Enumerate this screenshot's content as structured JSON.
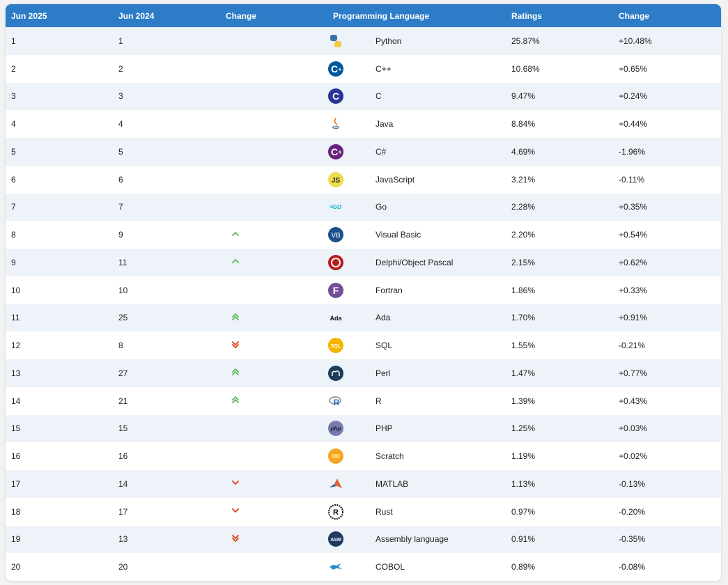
{
  "header": {
    "col_jun2025": "Jun 2025",
    "col_jun2024": "Jun 2024",
    "col_change_icon": "Change",
    "col_language": "Programming Language",
    "col_ratings": "Ratings",
    "col_change": "Change"
  },
  "colors": {
    "header_bg": "#2d7cc7",
    "up_arrow": "#6cbf6c",
    "down_arrow": "#e0532b"
  },
  "rows": [
    {
      "rank": "1",
      "prev": "1",
      "trend": "none",
      "icon": "python-logo-icon",
      "language": "Python",
      "rating": "25.87%",
      "change": "+10.48%"
    },
    {
      "rank": "2",
      "prev": "2",
      "trend": "none",
      "icon": "cpp-logo-icon",
      "language": "C++",
      "rating": "10.68%",
      "change": "+0.65%"
    },
    {
      "rank": "3",
      "prev": "3",
      "trend": "none",
      "icon": "c-logo-icon",
      "language": "C",
      "rating": "9.47%",
      "change": "+0.24%"
    },
    {
      "rank": "4",
      "prev": "4",
      "trend": "none",
      "icon": "java-logo-icon",
      "language": "Java",
      "rating": "8.84%",
      "change": "+0.44%"
    },
    {
      "rank": "5",
      "prev": "5",
      "trend": "none",
      "icon": "csharp-logo-icon",
      "language": "C#",
      "rating": "4.69%",
      "change": "-1.96%"
    },
    {
      "rank": "6",
      "prev": "6",
      "trend": "none",
      "icon": "javascript-logo-icon",
      "language": "JavaScript",
      "rating": "3.21%",
      "change": "-0.11%"
    },
    {
      "rank": "7",
      "prev": "7",
      "trend": "none",
      "icon": "go-logo-icon",
      "language": "Go",
      "rating": "2.28%",
      "change": "+0.35%"
    },
    {
      "rank": "8",
      "prev": "9",
      "trend": "up",
      "icon": "visual-basic-logo-icon",
      "language": "Visual Basic",
      "rating": "2.20%",
      "change": "+0.54%"
    },
    {
      "rank": "9",
      "prev": "11",
      "trend": "up",
      "icon": "delphi-logo-icon",
      "language": "Delphi/Object Pascal",
      "rating": "2.15%",
      "change": "+0.62%"
    },
    {
      "rank": "10",
      "prev": "10",
      "trend": "none",
      "icon": "fortran-logo-icon",
      "language": "Fortran",
      "rating": "1.86%",
      "change": "+0.33%"
    },
    {
      "rank": "11",
      "prev": "25",
      "trend": "double-up",
      "icon": "ada-logo-icon",
      "language": "Ada",
      "rating": "1.70%",
      "change": "+0.91%"
    },
    {
      "rank": "12",
      "prev": "8",
      "trend": "double-down",
      "icon": "sql-logo-icon",
      "language": "SQL",
      "rating": "1.55%",
      "change": "-0.21%"
    },
    {
      "rank": "13",
      "prev": "27",
      "trend": "double-up",
      "icon": "perl-logo-icon",
      "language": "Perl",
      "rating": "1.47%",
      "change": "+0.77%"
    },
    {
      "rank": "14",
      "prev": "21",
      "trend": "double-up",
      "icon": "r-logo-icon",
      "language": "R",
      "rating": "1.39%",
      "change": "+0.43%"
    },
    {
      "rank": "15",
      "prev": "15",
      "trend": "none",
      "icon": "php-logo-icon",
      "language": "PHP",
      "rating": "1.25%",
      "change": "+0.03%"
    },
    {
      "rank": "16",
      "prev": "16",
      "trend": "none",
      "icon": "scratch-logo-icon",
      "language": "Scratch",
      "rating": "1.19%",
      "change": "+0.02%"
    },
    {
      "rank": "17",
      "prev": "14",
      "trend": "down",
      "icon": "matlab-logo-icon",
      "language": "MATLAB",
      "rating": "1.13%",
      "change": "-0.13%"
    },
    {
      "rank": "18",
      "prev": "17",
      "trend": "down",
      "icon": "rust-logo-icon",
      "language": "Rust",
      "rating": "0.97%",
      "change": "-0.20%"
    },
    {
      "rank": "19",
      "prev": "13",
      "trend": "double-down",
      "icon": "assembly-logo-icon",
      "language": "Assembly language",
      "rating": "0.91%",
      "change": "-0.35%"
    },
    {
      "rank": "20",
      "prev": "20",
      "trend": "none",
      "icon": "cobol-logo-icon",
      "language": "COBOL",
      "rating": "0.89%",
      "change": "-0.08%"
    }
  ]
}
